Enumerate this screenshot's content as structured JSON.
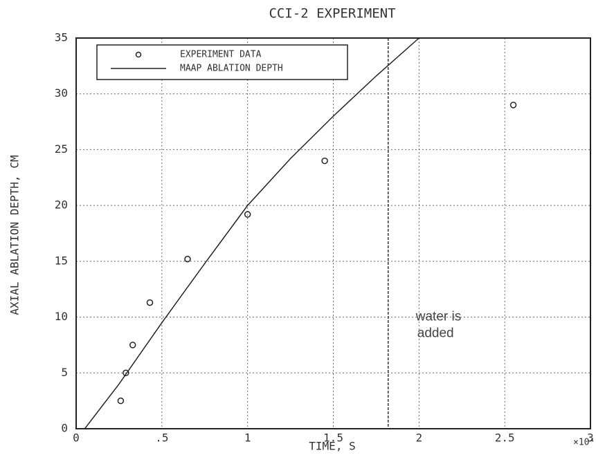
{
  "chart_data": {
    "type": "scatter",
    "title": "CCI-2 EXPERIMENT",
    "xlabel": "TIME, S",
    "ylabel": "AXIAL ABLATION DEPTH, CM",
    "x_multiplier": "×10⁴",
    "xlim": [
      0,
      3
    ],
    "ylim": [
      0,
      35
    ],
    "xticks": [
      0,
      {
        "value": 0.5,
        "label": ".5"
      },
      1,
      1.5,
      2,
      2.5,
      3
    ],
    "yticks": [
      0,
      5,
      10,
      15,
      20,
      25,
      30,
      35
    ],
    "grid": true,
    "legend": "upper left",
    "series": [
      {
        "name": "EXPERIMENT DATA",
        "type": "scatter",
        "color": "#222222",
        "x": [
          0.26,
          0.29,
          0.33,
          0.43,
          0.65,
          1.0,
          1.45,
          2.55
        ],
        "y": [
          2.5,
          5,
          7.5,
          11.3,
          15.2,
          19.2,
          24,
          29
        ]
      },
      {
        "name": "MAAP ABLATION DEPTH",
        "type": "line",
        "color": "#222222",
        "x": [
          0.05,
          0.25,
          0.5,
          0.75,
          1.0,
          1.25,
          1.5,
          1.75,
          2.0
        ],
        "y": [
          0,
          4,
          9.5,
          14.8,
          20,
          24.2,
          28,
          31.6,
          35
        ]
      }
    ],
    "annotation": {
      "x": 1.82,
      "text": "water is added"
    }
  }
}
